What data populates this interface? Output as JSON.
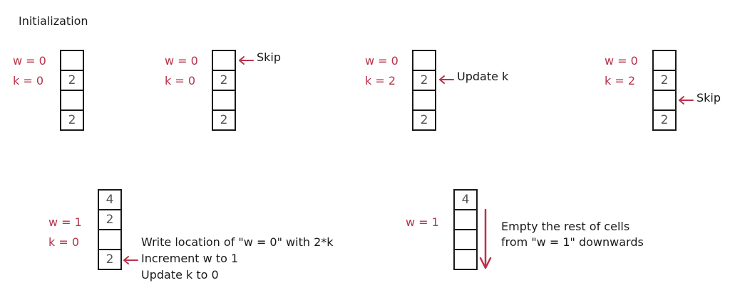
{
  "title": "Initialization",
  "colors": {
    "variable": "#b7334a",
    "ink": "#1a1a1a",
    "cell_text": "#555555"
  },
  "panels": [
    {
      "w": "w = 0",
      "k": "k = 0",
      "cells": [
        "",
        "2",
        "",
        "2"
      ],
      "note": ""
    },
    {
      "w": "w = 0",
      "k": "k = 0",
      "cells": [
        "",
        "2",
        "",
        "2"
      ],
      "note": "Skip"
    },
    {
      "w": "w = 0",
      "k": "k = 2",
      "cells": [
        "",
        "2",
        "",
        "2"
      ],
      "note": "Update k"
    },
    {
      "w": "w = 0",
      "k": "k = 2",
      "cells": [
        "",
        "2",
        "",
        "2"
      ],
      "note": "Skip"
    },
    {
      "w": "w = 1",
      "k": "k = 0",
      "cells": [
        "4",
        "2",
        "",
        "2"
      ],
      "notes": [
        "Write location of \"w = 0\" with 2*k",
        "Increment w to 1",
        "Update k to 0"
      ]
    },
    {
      "w": "w = 1",
      "cells": [
        "4",
        "",
        "",
        ""
      ],
      "notes": [
        "Empty the rest of cells",
        "from \"w = 1\" downwards"
      ]
    }
  ]
}
